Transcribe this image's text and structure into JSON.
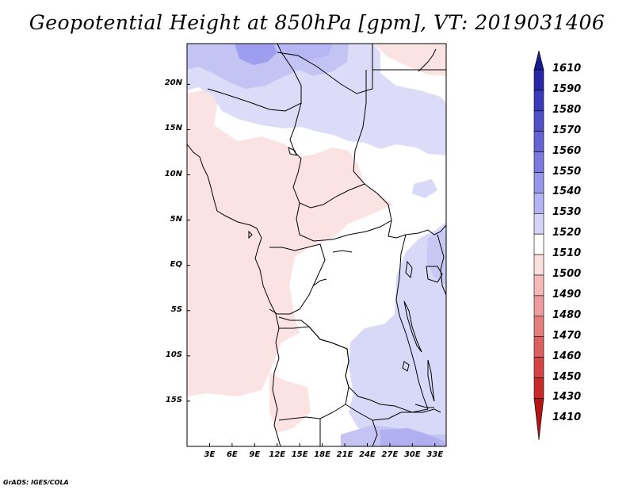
{
  "title": "Geopotential Height at 850hPa [gpm], VT: 2019031406",
  "lat_labels": [
    "20N",
    "15N",
    "10N",
    "5N",
    "EQ",
    "5S",
    "10S",
    "15S"
  ],
  "lat_values": [
    20,
    15,
    10,
    5,
    0,
    -5,
    -10,
    -15
  ],
  "lon_labels": [
    "3E",
    "6E",
    "9E",
    "12E",
    "15E",
    "18E",
    "21E",
    "24E",
    "27E",
    "30E",
    "33E"
  ],
  "lon_values": [
    3,
    6,
    9,
    12,
    15,
    18,
    21,
    24,
    27,
    30,
    33
  ],
  "extent": {
    "lon_min": 0,
    "lon_max": 34.5,
    "lat_min": -20,
    "lat_max": 24.5
  },
  "colorbar": {
    "labels": [
      "1610",
      "1590",
      "1580",
      "1570",
      "1560",
      "1550",
      "1540",
      "1530",
      "1520",
      "1510",
      "1500",
      "1490",
      "1480",
      "1470",
      "1460",
      "1450",
      "1430",
      "1410"
    ],
    "colors": [
      "#1a1a8c",
      "#2626a6",
      "#3a3ab8",
      "#4f4fc8",
      "#6464d6",
      "#7a7ae0",
      "#9696ea",
      "#b4b4f2",
      "#d4d4f8",
      "#ffffff",
      "#fce0e0",
      "#f4baba",
      "#ec9c9c",
      "#e47e7e",
      "#dc6060",
      "#d44444",
      "#c82a2a",
      "#b41414"
    ]
  },
  "footer": "GrADS: IGES/COLA"
}
